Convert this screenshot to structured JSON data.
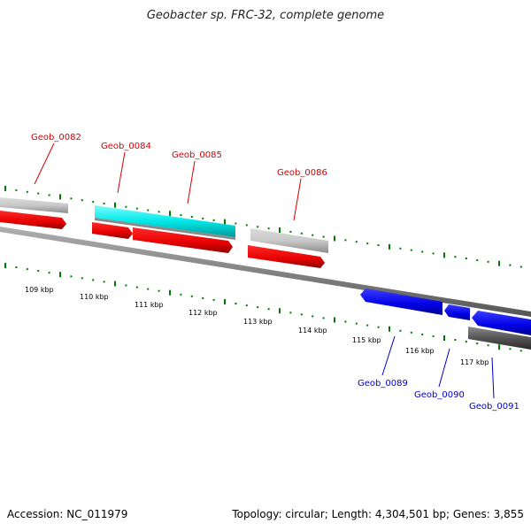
{
  "title": "Geobacter sp. FRC-32, complete genome",
  "footer": {
    "accession": "Accession: NC_011979",
    "topology": "Topology: circular; Length: 4,304,501 bp; Genes: 3,855"
  },
  "colors": {
    "forward_cds": "#e60000",
    "reverse_cds": "#0000e6",
    "gene_gray": "#bdbdbd",
    "gene_dark": "#4d4d4d",
    "highlight_cyan": "#00e8e8",
    "backbone": "#7a7a7a",
    "gc_ticks": "#007a00",
    "forward_label": "#d40000",
    "reverse_label": "#0000c8"
  },
  "scale_ticks": [
    "109 kbp",
    "110 kbp",
    "111 kbp",
    "112 kbp",
    "113 kbp",
    "114 kbp",
    "115 kbp",
    "116 kbp",
    "117 kbp"
  ],
  "gene_labels": {
    "forward": [
      "Geob_0082",
      "Geob_0084",
      "Geob_0085",
      "Geob_0086"
    ],
    "reverse": [
      "Geob_0089",
      "Geob_0090",
      "Geob_0091"
    ]
  },
  "features": [
    {
      "id": "gray-1",
      "strand": "+",
      "color": "gene_gray"
    },
    {
      "id": "red-1",
      "strand": "+",
      "color": "forward_cds"
    },
    {
      "id": "cyan-1",
      "strand": "+",
      "color": "highlight_cyan"
    },
    {
      "id": "red-2",
      "strand": "+",
      "color": "forward_cds"
    },
    {
      "id": "red-3",
      "strand": "+",
      "color": "forward_cds"
    },
    {
      "id": "gray-2",
      "strand": "+",
      "color": "gene_gray"
    },
    {
      "id": "red-4",
      "strand": "+",
      "color": "forward_cds"
    },
    {
      "id": "blue-1",
      "strand": "-",
      "color": "reverse_cds"
    },
    {
      "id": "blue-2",
      "strand": "-",
      "color": "reverse_cds"
    },
    {
      "id": "blue-3",
      "strand": "-",
      "color": "reverse_cds"
    },
    {
      "id": "dark-1",
      "strand": "-",
      "color": "gene_dark"
    }
  ]
}
